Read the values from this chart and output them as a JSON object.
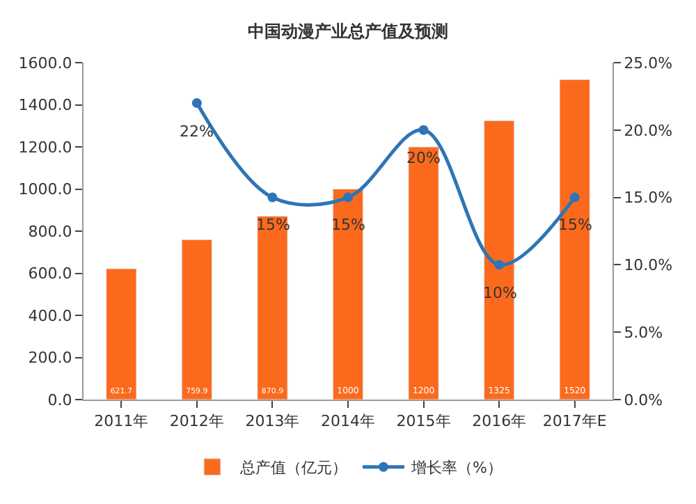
{
  "chart_data": {
    "type": "bar",
    "title": "中国动漫产业总产值及预测",
    "categories": [
      "2011年",
      "2012年",
      "2013年",
      "2014年",
      "2015年",
      "2016年",
      "2017年E"
    ],
    "series": [
      {
        "name": "总产值（亿元）",
        "color": "#fb6a1c",
        "values": [
          621.7,
          759.9,
          870.9,
          1000,
          1200,
          1325,
          1520
        ],
        "value_labels": [
          "621.7",
          "759.9",
          "870.9",
          "1000",
          "1200",
          "1325",
          "1520"
        ]
      },
      {
        "name": "增长率（%）",
        "type": "line",
        "axis": "y2",
        "color": "#2e75b6",
        "marker": "circle",
        "values": [
          null,
          22,
          15,
          15,
          20,
          10,
          15
        ],
        "value_labels": [
          null,
          "22%",
          "15%",
          "15%",
          "20%",
          "10%",
          "15%"
        ]
      }
    ],
    "ylim": [
      0,
      1600
    ],
    "yticks": [
      {
        "value": 0,
        "label": "0.0"
      },
      {
        "value": 200,
        "label": "200.0"
      },
      {
        "value": 400,
        "label": "400.0"
      },
      {
        "value": 600,
        "label": "600.0"
      },
      {
        "value": 800,
        "label": "800.0"
      },
      {
        "value": 1000,
        "label": "1000.0"
      },
      {
        "value": 1200,
        "label": "1200.0"
      },
      {
        "value": 1400,
        "label": "1400.0"
      },
      {
        "value": 1600,
        "label": "1600.0"
      }
    ],
    "y2lim": [
      0,
      25
    ],
    "y2ticks": [
      {
        "value": 0,
        "label": "0.0%"
      },
      {
        "value": 5,
        "label": "5.0%"
      },
      {
        "value": 10,
        "label": "10.0%"
      },
      {
        "value": 15,
        "label": "15.0%"
      },
      {
        "value": 20,
        "label": "20.0%"
      },
      {
        "value": 25,
        "label": "25.0%"
      }
    ],
    "legend": "bottom"
  }
}
